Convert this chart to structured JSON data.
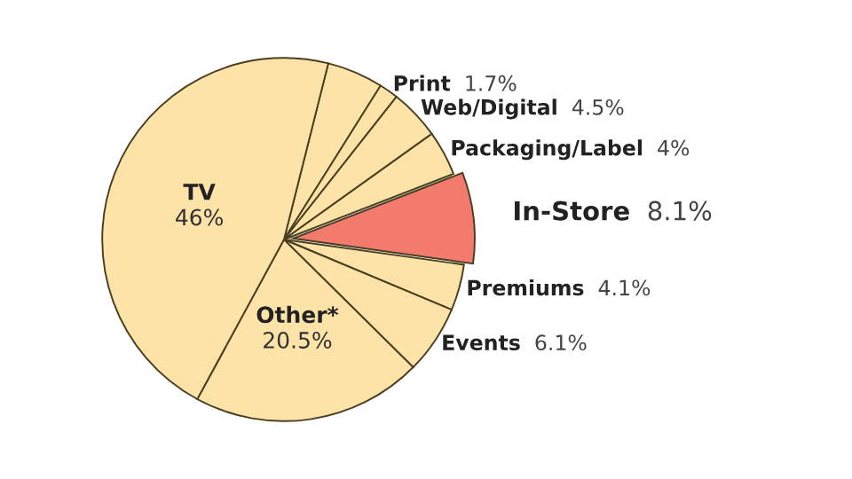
{
  "chart_data": {
    "type": "pie",
    "categories": [
      null,
      "Print",
      "Web/Digital",
      "Packaging/Label",
      "In-Store",
      "Premiums",
      "Events",
      "Other*",
      "TV"
    ],
    "values": [
      5,
      1.7,
      4.5,
      4,
      8.1,
      4.1,
      6.1,
      20.5,
      46
    ],
    "value_labels": [
      null,
      "1.7%",
      "4.5%",
      "4%",
      "8.1%",
      "4.1%",
      "6.1%",
      "20.5%",
      "46%"
    ],
    "colors": [
      "#fde3a7",
      "#fde3a7",
      "#fde3a7",
      "#fde3a7",
      "#f27b6e",
      "#fde3a7",
      "#fde3a7",
      "#fde3a7",
      "#fde3a7"
    ]
  }
}
